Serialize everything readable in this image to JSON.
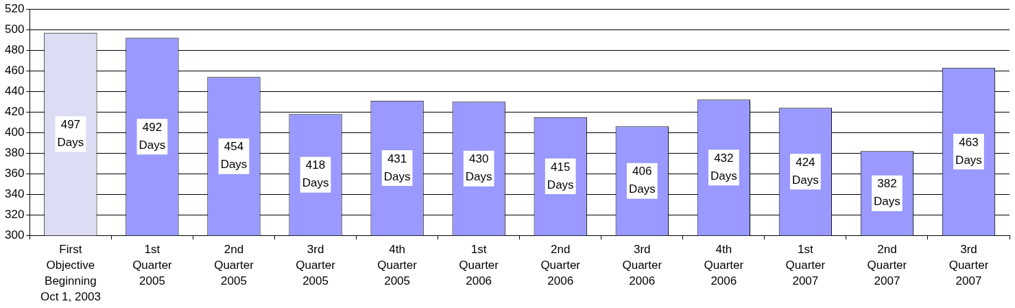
{
  "chart_data": {
    "type": "bar",
    "categories": [
      "First\nObjective\nBeginning\nOct 1, 2003",
      "1st\nQuarter\n2005",
      "2nd\nQuarter\n2005",
      "3rd\nQuarter\n2005",
      "4th\nQuarter\n2005",
      "1st\nQuarter\n2006",
      "2nd\nQuarter\n2006",
      "3rd\nQuarter\n2006",
      "4th\nQuarter\n2006",
      "1st\nQuarter\n2007",
      "2nd\nQuarter\n2007",
      "3rd\nQuarter\n2007"
    ],
    "values": [
      497,
      492,
      454,
      418,
      431,
      430,
      415,
      406,
      432,
      424,
      382,
      463
    ],
    "colors": [
      "#dcdcf4",
      "#9999ff",
      "#9999ff",
      "#9999ff",
      "#9999ff",
      "#9999ff",
      "#9999ff",
      "#9999ff",
      "#9999ff",
      "#9999ff",
      "#9999ff",
      "#9999ff"
    ],
    "value_labels": [
      "497\nDays",
      "492\nDays",
      "454\nDays",
      "418\nDays",
      "431\nDays",
      "430\nDays",
      "415\nDays",
      "406\nDays",
      "432\nDays",
      "424\nDays",
      "382\nDays",
      "463\nDays"
    ],
    "ylim": [
      300,
      520
    ],
    "yticks": [
      300,
      320,
      340,
      360,
      380,
      400,
      420,
      440,
      460,
      480,
      500,
      520
    ],
    "grid": "y"
  }
}
